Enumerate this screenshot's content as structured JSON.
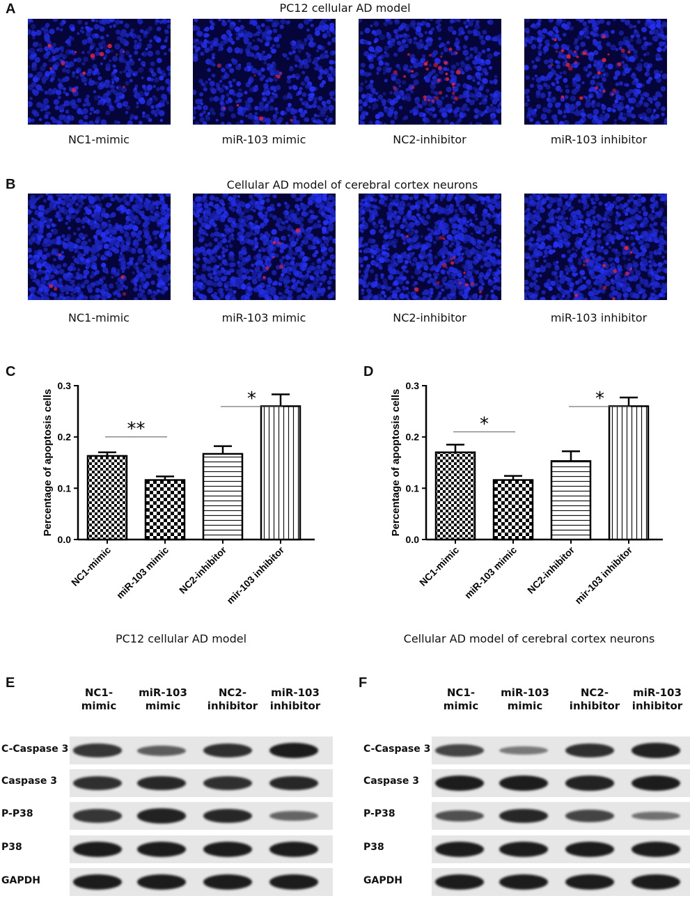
{
  "panels": {
    "A": {
      "letter": "A",
      "title": "PC12 cellular AD model",
      "captions": [
        "NC1-mimic",
        "miR-103 mimic",
        "NC2-inhibitor",
        "miR-103 inhibitor"
      ]
    },
    "B": {
      "letter": "B",
      "title": "Cellular AD model of cerebral cortex neurons",
      "captions": [
        "NC1-mimic",
        "miR-103 mimic",
        "NC2-inhibitor",
        "miR-103 inhibitor"
      ]
    },
    "C": {
      "letter": "C",
      "caption": "PC12 cellular AD model"
    },
    "D": {
      "letter": "D",
      "caption": "Cellular AD model of cerebral cortex neurons"
    },
    "E": {
      "letter": "E",
      "columns": [
        {
          "l1": "NC1-",
          "l2": "mimic"
        },
        {
          "l1": "miR-103",
          "l2": "mimic"
        },
        {
          "l1": "NC2-",
          "l2": "inhibitor"
        },
        {
          "l1": "miR-103",
          "l2": "inhibitor"
        }
      ],
      "rows": [
        "C-Caspase 3",
        "Caspase 3",
        "P-P38",
        "P38",
        "GAPDH"
      ]
    },
    "F": {
      "letter": "F",
      "columns": [
        {
          "l1": "NC1-",
          "l2": "mimic"
        },
        {
          "l1": "miR-103",
          "l2": "mimic"
        },
        {
          "l1": "NC2-",
          "l2": "inhibitor"
        },
        {
          "l1": "miR-103",
          "l2": "inhibitor"
        }
      ],
      "rows": [
        "C-Caspase 3",
        "Caspase 3",
        "P-P38",
        "P38",
        "GAPDH"
      ]
    }
  },
  "chart_data": [
    {
      "type": "bar",
      "panel": "C",
      "categories": [
        "NC1-mimic",
        "miR-103 mimic",
        "NC2-inhibitor",
        "mir-103 inhibitor"
      ],
      "values": [
        0.163,
        0.116,
        0.167,
        0.26
      ],
      "errors": [
        0.007,
        0.007,
        0.015,
        0.023
      ],
      "ylabel": "Percentage of apoptosis cells",
      "xlabel": "",
      "ylim": [
        0,
        0.3
      ],
      "yticks": [
        "0.0",
        "0.1",
        "0.2",
        "0.3"
      ],
      "patterns": [
        "checker",
        "checker-bold",
        "horizontal",
        "vertical"
      ],
      "significance": [
        {
          "from": 0,
          "to": 1,
          "label": "**",
          "y": 0.2
        },
        {
          "from": 2,
          "to": 3,
          "label": "*",
          "y": 0.3
        }
      ]
    },
    {
      "type": "bar",
      "panel": "D",
      "categories": [
        "NC1-mimic",
        "miR-103 mimic",
        "NC2-inhibitor",
        "mir-103 inhibitor"
      ],
      "values": [
        0.17,
        0.116,
        0.153,
        0.26
      ],
      "errors": [
        0.015,
        0.008,
        0.019,
        0.017
      ],
      "ylabel": "Percentage of apoptosis cells",
      "xlabel": "",
      "ylim": [
        0,
        0.3
      ],
      "yticks": [
        "0.0",
        "0.1",
        "0.2",
        "0.3"
      ],
      "patterns": [
        "checker",
        "checker-bold",
        "horizontal",
        "vertical"
      ],
      "significance": [
        {
          "from": 0,
          "to": 1,
          "label": "*",
          "y": 0.21
        },
        {
          "from": 2,
          "to": 3,
          "label": "*",
          "y": 0.3
        }
      ]
    }
  ],
  "western_blot": {
    "E": [
      [
        0.8,
        0.5,
        0.85,
        1.0
      ],
      [
        0.85,
        0.9,
        0.85,
        0.9
      ],
      [
        0.8,
        0.95,
        0.9,
        0.45
      ],
      [
        1.0,
        1.0,
        1.0,
        1.0
      ],
      [
        1.0,
        1.0,
        1.0,
        1.0
      ]
    ],
    "F": [
      [
        0.7,
        0.3,
        0.85,
        0.95
      ],
      [
        1.0,
        1.0,
        0.95,
        1.0
      ],
      [
        0.6,
        0.9,
        0.7,
        0.35
      ],
      [
        1.0,
        1.0,
        1.0,
        1.0
      ],
      [
        1.0,
        1.0,
        1.0,
        1.0
      ]
    ]
  },
  "microscopy": {
    "A": [
      0.1,
      0.08,
      0.25,
      0.22
    ],
    "B": [
      0.08,
      0.06,
      0.12,
      0.1
    ]
  }
}
